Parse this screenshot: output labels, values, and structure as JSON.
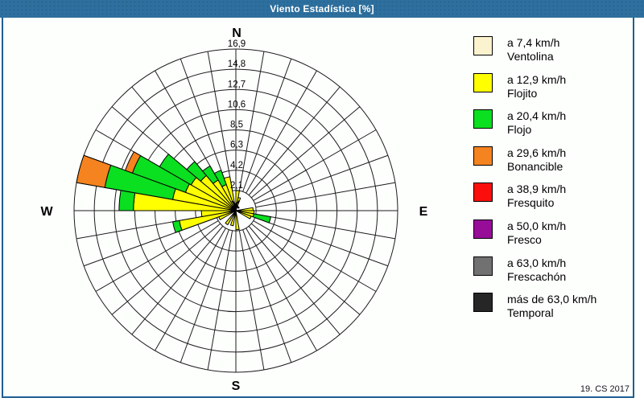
{
  "window": {
    "title": "Viento Estadística [%]",
    "credit": "19. CS 2017",
    "title_bar_color": "#2D6F9E",
    "border_color": "#1F5E92"
  },
  "chart_data": {
    "type": "wind-rose polar stacked bar",
    "units": "%",
    "title": "Viento Estadística [%]",
    "compass_labels": {
      "n": "N",
      "e": "E",
      "s": "S",
      "w": "W"
    },
    "sector_width_deg": 10,
    "num_spokes": 36,
    "ring_step": 2.1125,
    "ring_labels": [
      "2,1",
      "4,2",
      "6,3",
      "8,5",
      "10,6",
      "12,7",
      "14,8",
      "16,9"
    ],
    "max_value": 16.9,
    "grid": {
      "rings": 8,
      "spoke_interval_deg": 10,
      "line_color": "#1c1c1c"
    },
    "legend_position": "right",
    "series": [
      {
        "speed_label": "a 7,4 km/h",
        "name": "Ventolina",
        "color": "#FAF3CE"
      },
      {
        "speed_label": "a 12,9 km/h",
        "name": "Flojito",
        "color": "#FFFF00"
      },
      {
        "speed_label": "a 20,4 km/h",
        "name": "Flojo",
        "color": "#0ADF20"
      },
      {
        "speed_label": "a 29,6 km/h",
        "name": "Bonancible",
        "color": "#F5831F"
      },
      {
        "speed_label": "a 38,9 km/h",
        "name": "Fresquito",
        "color": "#FB0F0C"
      },
      {
        "speed_label": "a 50,0 km/h",
        "name": "Fresco",
        "color": "#970D97"
      },
      {
        "speed_label": "a 63,0 km/h",
        "name": "Frescachón",
        "color": "#717171"
      },
      {
        "speed_label": "más de 63,0 km/h",
        "name": "Temporal",
        "color": "#262626"
      }
    ],
    "sectors_note": "values = stacked segment heights in % for [Ventolina, Flojito, Flojo, Bonancible]; higher series are 0 everywhere; sectors not listed are 0",
    "sectors": [
      {
        "bearing_start": 0,
        "values": [
          0,
          2.1,
          0,
          0
        ]
      },
      {
        "bearing_start": 10,
        "values": [
          0,
          1.4,
          0,
          0
        ]
      },
      {
        "bearing_start": 80,
        "values": [
          0,
          1.8,
          0,
          0
        ]
      },
      {
        "bearing_start": 90,
        "values": [
          0,
          1.9,
          0,
          0
        ]
      },
      {
        "bearing_start": 100,
        "values": [
          0,
          1.9,
          1.8,
          0
        ]
      },
      {
        "bearing_start": 110,
        "values": [
          0,
          1.7,
          0,
          0
        ]
      },
      {
        "bearing_start": 170,
        "values": [
          0,
          2.0,
          0,
          0
        ]
      },
      {
        "bearing_start": 190,
        "values": [
          0,
          1.6,
          0,
          0
        ]
      },
      {
        "bearing_start": 210,
        "values": [
          0,
          1.7,
          0,
          0
        ]
      },
      {
        "bearing_start": 240,
        "values": [
          0,
          1.9,
          0,
          0
        ]
      },
      {
        "bearing_start": 250,
        "values": [
          0,
          6.0,
          0.7,
          0
        ]
      },
      {
        "bearing_start": 260,
        "values": [
          0,
          3.6,
          0,
          0
        ]
      },
      {
        "bearing_start": 270,
        "values": [
          0,
          10.7,
          1.5,
          0
        ]
      },
      {
        "bearing_start": 280,
        "values": [
          0,
          6.7,
          7.2,
          3.0
        ]
      },
      {
        "bearing_start": 290,
        "values": [
          0,
          5.6,
          5.9,
          0.8
        ]
      },
      {
        "bearing_start": 300,
        "values": [
          0,
          5.4,
          3.8,
          0
        ]
      },
      {
        "bearing_start": 310,
        "values": [
          0,
          4.8,
          1.9,
          0
        ]
      },
      {
        "bearing_start": 320,
        "values": [
          0,
          3.7,
          1.7,
          0
        ]
      },
      {
        "bearing_start": 330,
        "values": [
          0,
          2.9,
          1.6,
          0
        ]
      },
      {
        "bearing_start": 340,
        "values": [
          0,
          3.6,
          0,
          0
        ]
      }
    ]
  }
}
